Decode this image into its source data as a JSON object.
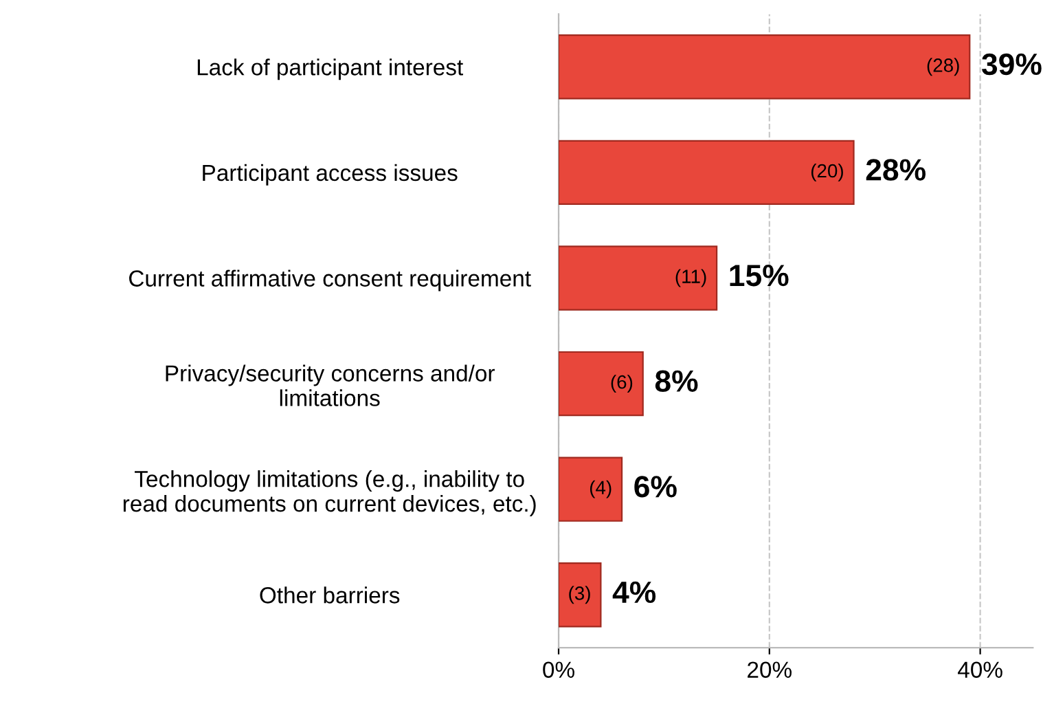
{
  "chart_data": {
    "type": "bar",
    "orientation": "horizontal",
    "categories": [
      "Lack of participant interest",
      "Participant access issues",
      "Current affirmative consent requirement",
      "Privacy/security concerns and/or\nlimitations",
      "Technology limitations (e.g., inability to\nread documents on current devices, etc.)",
      "Other barriers"
    ],
    "values": [
      39,
      28,
      15,
      8,
      6,
      4
    ],
    "color": "#e8473b",
    "value_labels": [
      "39%",
      "28%",
      "15%",
      "8%",
      "6%",
      "4%"
    ],
    "xlim": [
      0,
      45
    ],
    "xticks": [
      {
        "value": 0,
        "label": "0%"
      },
      {
        "value": 20,
        "label": "20%"
      },
      {
        "value": 40,
        "label": "40%"
      }
    ],
    "grid": "x",
    "line_style": "dashed",
    "annotations": [
      "(28)",
      "(20)",
      "(11)",
      "(6)",
      "(4)",
      "(3)"
    ]
  }
}
